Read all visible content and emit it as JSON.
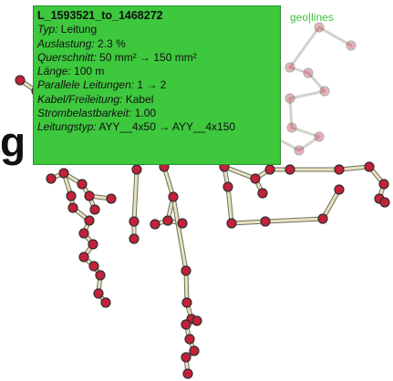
{
  "overlay": {
    "big_letter": "g",
    "brand": "geo|lines"
  },
  "tooltip": {
    "title": "L_1593521_to_1468272",
    "rows": [
      {
        "key": "Typ:",
        "value": " Leitung"
      },
      {
        "key": "Auslastung:",
        "value": " 2.3 %"
      },
      {
        "key": "Querschnitt:",
        "value": " 50 mm² → 150 mm²"
      },
      {
        "key": "Länge:",
        "value": " 100 m"
      },
      {
        "key": "Parallele Leitungen:",
        "value": " 1 → 2"
      },
      {
        "key": "Kabel/Freileitung:",
        "value": " Kabel"
      },
      {
        "key": "Strombelastbarkeit:",
        "value": " 1.00"
      },
      {
        "key": "Leitungstyp:",
        "value": " AYY__4x50 → AYY__4x150"
      }
    ]
  },
  "colors": {
    "tooltip_bg": "#3ec83e",
    "node_fill": "#c4213a",
    "node_stroke": "#2f2f2f",
    "line_color": "#e8e2c0",
    "line_outline": "#6e6e5e"
  }
}
